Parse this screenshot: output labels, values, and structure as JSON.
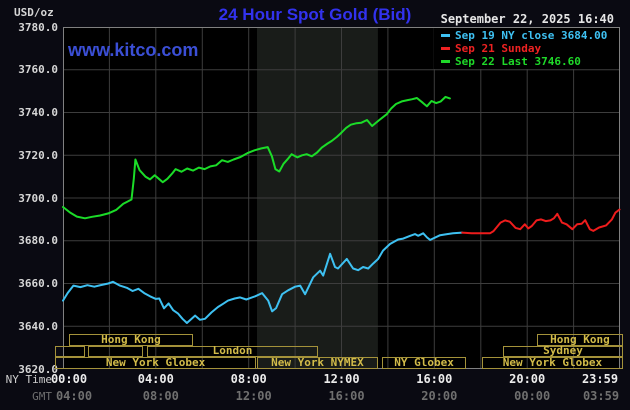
{
  "header": {
    "unit_label": "USD/oz",
    "title": "24 Hour Spot Gold (Bid)",
    "datetime": "September 22, 2025 16:40",
    "watermark": "www.kitco.com"
  },
  "legend": [
    {
      "label": "Sep 19 NY close 3684.00",
      "color": "#3ec1f2"
    },
    {
      "label": "Sep 21 Sunday",
      "color": "#ee2222"
    },
    {
      "label": "Sep 22 Last 3746.60",
      "color": "#1fd929"
    }
  ],
  "axes": {
    "ny_caption": "NY Time",
    "gmt_caption": "GMT",
    "y_ticks": [
      "3780.0",
      "3760.0",
      "3740.0",
      "3720.0",
      "3700.0",
      "3680.0",
      "3660.0",
      "3640.0",
      "3620.0"
    ],
    "x_ticks": [
      {
        "h": 0,
        "ny": "00:00",
        "gmt": "04:00"
      },
      {
        "h": 4,
        "ny": "04:00",
        "gmt": "08:00"
      },
      {
        "h": 8,
        "ny": "08:00",
        "gmt": "12:00"
      },
      {
        "h": 12,
        "ny": "12:00",
        "gmt": "16:00"
      },
      {
        "h": 16,
        "ny": "16:00",
        "gmt": "20:00"
      },
      {
        "h": 20,
        "ny": "20:00",
        "gmt": "00:00"
      },
      {
        "h": 23.98,
        "ny": "23:59",
        "gmt": "03:59"
      }
    ]
  },
  "sessions": [
    {
      "row": 0,
      "label": "Hong Kong",
      "from_hour": 0.26,
      "to_hour": 5.6
    },
    {
      "row": 0,
      "label": "Hong Kong",
      "from_hour": 20.42,
      "to_hour": 24.13
    },
    {
      "row": 1,
      "label": "",
      "from_hour": -0.34,
      "to_hour": 0.95
    },
    {
      "row": 1,
      "label": "",
      "from_hour": 1.08,
      "to_hour": 3.45
    },
    {
      "row": 1,
      "label": "London",
      "from_hour": 3.62,
      "to_hour": 10.99
    },
    {
      "row": 1,
      "label": "Sydney",
      "from_hour": 18.96,
      "to_hour": 24.13
    },
    {
      "row": 2,
      "label": "New York Globex",
      "from_hour": -0.34,
      "to_hour": 8.32
    },
    {
      "row": 2,
      "label": "New York NYMEX",
      "from_hour": 8.36,
      "to_hour": 13.57
    },
    {
      "row": 2,
      "label": "NY Globex",
      "from_hour": 13.75,
      "to_hour": 17.37
    },
    {
      "row": 2,
      "label": "New York Globex",
      "from_hour": 18.05,
      "to_hour": 24.13
    }
  ],
  "chart_data": {
    "type": "line",
    "title": "24 Hour Spot Gold (Bid)",
    "x_unit": "hour of day, NY time",
    "x_range": [
      0,
      24
    ],
    "y_label": "USD/oz",
    "y_min": 3620,
    "y_max": 3780,
    "y_step": 20,
    "grid": true,
    "legend_position": "top-right",
    "shaded_band": {
      "from_hour": 8.36,
      "to_hour": 13.57
    },
    "colors": {
      "plot_bg": "#000000",
      "band": "#191c19",
      "grid": "#3d3d3d",
      "border": "#808080"
    },
    "series": [
      {
        "name": "Sep 19 NY close 3684.00",
        "color": "#3ec1f2",
        "points": [
          [
            0,
            3652
          ],
          [
            0.2,
            3655.5
          ],
          [
            0.45,
            3659
          ],
          [
            0.75,
            3658.3
          ],
          [
            1.05,
            3659.2
          ],
          [
            1.35,
            3658.5
          ],
          [
            1.65,
            3659.3
          ],
          [
            1.95,
            3660
          ],
          [
            2.15,
            3660.8
          ],
          [
            2.45,
            3659
          ],
          [
            2.75,
            3658
          ],
          [
            3.0,
            3656.5
          ],
          [
            3.25,
            3657.5
          ],
          [
            3.5,
            3655.5
          ],
          [
            3.75,
            3654
          ],
          [
            4.0,
            3652.8
          ],
          [
            4.15,
            3653
          ],
          [
            4.35,
            3648.4
          ],
          [
            4.55,
            3650.7
          ],
          [
            4.75,
            3647.5
          ],
          [
            4.95,
            3646
          ],
          [
            5.15,
            3643.5
          ],
          [
            5.34,
            3641.5
          ],
          [
            5.69,
            3645
          ],
          [
            5.9,
            3643
          ],
          [
            6.12,
            3643.5
          ],
          [
            6.4,
            3646.5
          ],
          [
            6.68,
            3649
          ],
          [
            6.9,
            3650.5
          ],
          [
            7.11,
            3652
          ],
          [
            7.4,
            3653
          ],
          [
            7.63,
            3653.5
          ],
          [
            7.9,
            3652.5
          ],
          [
            8.28,
            3654
          ],
          [
            8.58,
            3655.5
          ],
          [
            8.84,
            3652
          ],
          [
            9.01,
            3647
          ],
          [
            9.18,
            3648.5
          ],
          [
            9.44,
            3655
          ],
          [
            9.7,
            3656.8
          ],
          [
            10.0,
            3658.5
          ],
          [
            10.22,
            3659
          ],
          [
            10.43,
            3655
          ],
          [
            10.78,
            3662.9
          ],
          [
            11.08,
            3666
          ],
          [
            11.21,
            3663.7
          ],
          [
            11.51,
            3673.9
          ],
          [
            11.72,
            3667.7
          ],
          [
            11.85,
            3667
          ],
          [
            12.23,
            3671.5
          ],
          [
            12.5,
            3667
          ],
          [
            12.72,
            3666.2
          ],
          [
            12.93,
            3667.7
          ],
          [
            13.15,
            3667
          ],
          [
            13.36,
            3669.3
          ],
          [
            13.58,
            3671.5
          ],
          [
            13.79,
            3675.4
          ],
          [
            14.09,
            3678.5
          ],
          [
            14.44,
            3680.6
          ],
          [
            14.66,
            3681
          ],
          [
            14.96,
            3682.3
          ],
          [
            15.17,
            3683.1
          ],
          [
            15.3,
            3682.3
          ],
          [
            15.52,
            3683.5
          ],
          [
            15.69,
            3681.5
          ],
          [
            15.82,
            3680.4
          ],
          [
            16.25,
            3682.6
          ],
          [
            16.55,
            3683.1
          ],
          [
            16.81,
            3683.5
          ],
          [
            17.2,
            3683.8
          ]
        ]
      },
      {
        "name": "Sep 21 Sunday",
        "color": "#ee1c1c",
        "points": [
          [
            17.2,
            3683.8
          ],
          [
            17.6,
            3683.5
          ],
          [
            18.0,
            3683.5
          ],
          [
            18.4,
            3683.5
          ],
          [
            18.55,
            3684.5
          ],
          [
            18.7,
            3686.5
          ],
          [
            18.85,
            3688.5
          ],
          [
            19.05,
            3689.5
          ],
          [
            19.25,
            3688.9
          ],
          [
            19.5,
            3686
          ],
          [
            19.7,
            3685.4
          ],
          [
            19.9,
            3687.7
          ],
          [
            20.05,
            3685.8
          ],
          [
            20.2,
            3686.9
          ],
          [
            20.4,
            3689.5
          ],
          [
            20.6,
            3690
          ],
          [
            20.8,
            3689.2
          ],
          [
            21.0,
            3689.5
          ],
          [
            21.15,
            3690.5
          ],
          [
            21.3,
            3692.6
          ],
          [
            21.5,
            3688.5
          ],
          [
            21.7,
            3687.7
          ],
          [
            21.95,
            3685.4
          ],
          [
            22.15,
            3687.7
          ],
          [
            22.35,
            3688
          ],
          [
            22.5,
            3689.6
          ],
          [
            22.7,
            3685.4
          ],
          [
            22.85,
            3684.6
          ],
          [
            23.1,
            3686.2
          ],
          [
            23.4,
            3687.2
          ],
          [
            23.65,
            3690
          ],
          [
            23.8,
            3693.1
          ],
          [
            23.98,
            3694.6
          ]
        ]
      },
      {
        "name": "Sep 22 Last 3746.60",
        "color": "#1bdc28",
        "points": [
          [
            0,
            3695.8
          ],
          [
            0.3,
            3693.2
          ],
          [
            0.6,
            3691.3
          ],
          [
            0.95,
            3690.5
          ],
          [
            1.25,
            3691.2
          ],
          [
            1.6,
            3691.8
          ],
          [
            1.95,
            3692.8
          ],
          [
            2.3,
            3694.5
          ],
          [
            2.6,
            3697.3
          ],
          [
            2.95,
            3699.3
          ],
          [
            3.05,
            3709
          ],
          [
            3.12,
            3718
          ],
          [
            3.3,
            3713
          ],
          [
            3.55,
            3710
          ],
          [
            3.75,
            3708.7
          ],
          [
            3.95,
            3710.6
          ],
          [
            4.15,
            3708.8
          ],
          [
            4.3,
            3707.4
          ],
          [
            4.5,
            3709
          ],
          [
            4.7,
            3711.4
          ],
          [
            4.85,
            3713.5
          ],
          [
            5.1,
            3712.3
          ],
          [
            5.35,
            3713.8
          ],
          [
            5.6,
            3712.8
          ],
          [
            5.85,
            3714.2
          ],
          [
            6.1,
            3713.5
          ],
          [
            6.35,
            3714.8
          ],
          [
            6.6,
            3715.3
          ],
          [
            6.85,
            3717.7
          ],
          [
            7.1,
            3716.9
          ],
          [
            7.35,
            3718
          ],
          [
            7.65,
            3719.2
          ],
          [
            7.95,
            3721
          ],
          [
            8.25,
            3722.3
          ],
          [
            8.55,
            3723.2
          ],
          [
            8.82,
            3723.8
          ],
          [
            9.0,
            3719.5
          ],
          [
            9.15,
            3713.5
          ],
          [
            9.32,
            3712.4
          ],
          [
            9.5,
            3716
          ],
          [
            9.68,
            3718.2
          ],
          [
            9.85,
            3720.5
          ],
          [
            10.1,
            3719
          ],
          [
            10.3,
            3720
          ],
          [
            10.5,
            3720.5
          ],
          [
            10.72,
            3719.5
          ],
          [
            10.95,
            3721.3
          ],
          [
            11.15,
            3723.6
          ],
          [
            11.4,
            3725.5
          ],
          [
            11.58,
            3726.7
          ],
          [
            11.8,
            3728.6
          ],
          [
            12.0,
            3730.6
          ],
          [
            12.2,
            3732.8
          ],
          [
            12.4,
            3734.3
          ],
          [
            12.65,
            3735
          ],
          [
            12.85,
            3735.2
          ],
          [
            13.1,
            3736.5
          ],
          [
            13.32,
            3733.7
          ],
          [
            13.55,
            3735.8
          ],
          [
            13.75,
            3737.5
          ],
          [
            13.95,
            3739.2
          ],
          [
            14.15,
            3742
          ],
          [
            14.35,
            3744
          ],
          [
            14.6,
            3745.2
          ],
          [
            14.85,
            3745.8
          ],
          [
            15.05,
            3746.2
          ],
          [
            15.25,
            3746.8
          ],
          [
            15.5,
            3744.6
          ],
          [
            15.68,
            3742.9
          ],
          [
            15.88,
            3745.4
          ],
          [
            16.08,
            3744.4
          ],
          [
            16.28,
            3745.2
          ],
          [
            16.48,
            3747.3
          ],
          [
            16.67,
            3746.6
          ]
        ]
      }
    ]
  }
}
